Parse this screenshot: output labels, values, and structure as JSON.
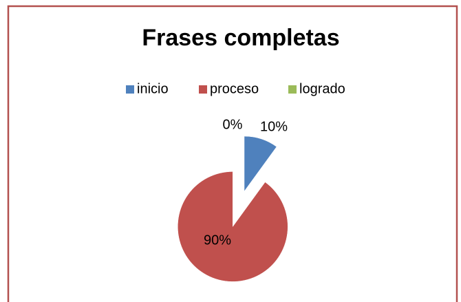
{
  "chart_data": {
    "type": "pie",
    "title": "Frases completas",
    "categories": [
      "inicio",
      "proceso",
      "logrado"
    ],
    "values": [
      10,
      90,
      0
    ],
    "value_labels": [
      "10%",
      "90%",
      "0%"
    ],
    "colors": [
      "#4f81bd",
      "#c0504d",
      "#9bbb59"
    ],
    "legend": "top"
  }
}
